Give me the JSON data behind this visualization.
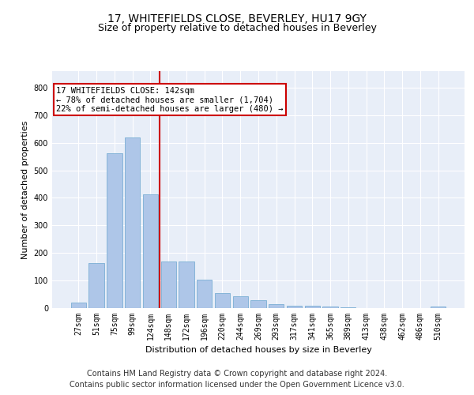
{
  "title": "17, WHITEFIELDS CLOSE, BEVERLEY, HU17 9GY",
  "subtitle": "Size of property relative to detached houses in Beverley",
  "xlabel": "Distribution of detached houses by size in Beverley",
  "ylabel": "Number of detached properties",
  "categories": [
    "27sqm",
    "51sqm",
    "75sqm",
    "99sqm",
    "124sqm",
    "148sqm",
    "172sqm",
    "196sqm",
    "220sqm",
    "244sqm",
    "269sqm",
    "293sqm",
    "317sqm",
    "341sqm",
    "365sqm",
    "389sqm",
    "413sqm",
    "438sqm",
    "462sqm",
    "486sqm",
    "510sqm"
  ],
  "values": [
    20,
    162,
    562,
    618,
    412,
    170,
    170,
    103,
    55,
    43,
    30,
    14,
    10,
    8,
    6,
    3,
    1,
    0,
    0,
    0,
    7
  ],
  "bar_color": "#aec6e8",
  "bar_edgecolor": "#7aaed4",
  "vline_color": "#cc0000",
  "annotation_text": "17 WHITEFIELDS CLOSE: 142sqm\n← 78% of detached houses are smaller (1,704)\n22% of semi-detached houses are larger (480) →",
  "annotation_box_edgecolor": "#cc0000",
  "annotation_box_facecolor": "#ffffff",
  "ylim": [
    0,
    860
  ],
  "yticks": [
    0,
    100,
    200,
    300,
    400,
    500,
    600,
    700,
    800
  ],
  "footer_line1": "Contains HM Land Registry data © Crown copyright and database right 2024.",
  "footer_line2": "Contains public sector information licensed under the Open Government Licence v3.0.",
  "plot_bg_color": "#e8eef8",
  "title_fontsize": 10,
  "subtitle_fontsize": 9,
  "axis_label_fontsize": 8,
  "tick_fontsize": 7,
  "footer_fontsize": 7,
  "annotation_fontsize": 7.5
}
